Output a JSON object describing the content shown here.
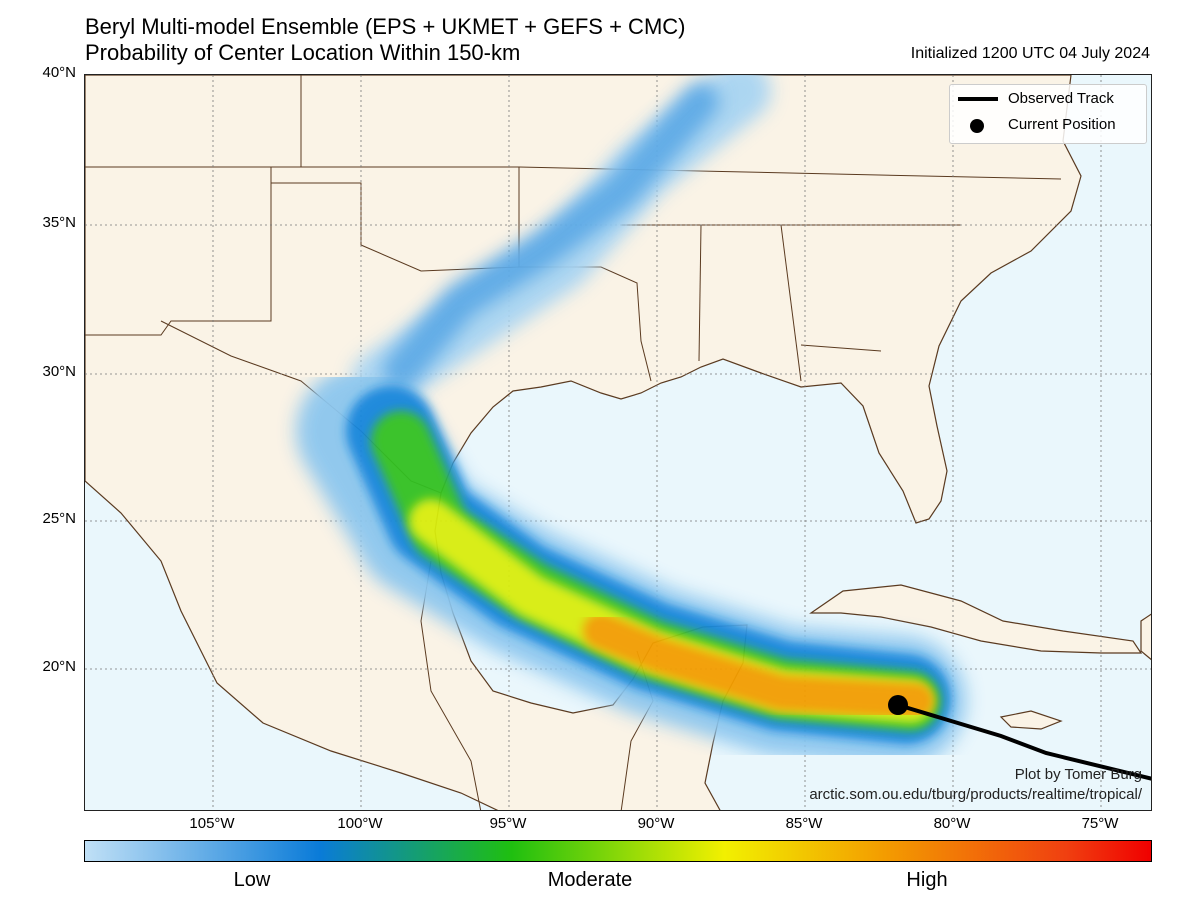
{
  "header": {
    "title_line1": "Beryl Multi-model Ensemble (EPS + UKMET + GEFS + CMC)",
    "title_line2": "Probability of Center Location Within 150-km",
    "initialized": "Initialized 1200 UTC 04 July 2024"
  },
  "axes": {
    "lat_labels": [
      "40°N",
      "35°N",
      "30°N",
      "25°N",
      "20°N"
    ],
    "lon_labels": [
      "105°W",
      "100°W",
      "95°W",
      "90°W",
      "85°W",
      "80°W",
      "75°W"
    ]
  },
  "legend": {
    "items": [
      {
        "label": "Observed Track",
        "icon": "line-icon"
      },
      {
        "label": "Current Position",
        "icon": "dot-icon"
      }
    ]
  },
  "credit": {
    "line1": "Plot by Tomer Burg",
    "line2": "arctic.som.ou.edu/tburg/products/realtime/tropical/"
  },
  "colorbar": {
    "labels": [
      "Low",
      "Moderate",
      "High"
    ],
    "colors": [
      "#c0e0f6",
      "#0a7bd8",
      "#1fbf10",
      "#f2f000",
      "#f39c00",
      "#f04010",
      "#f00000"
    ]
  },
  "colors": {
    "land": "#faf3e6",
    "water": "#eaf7fc",
    "border": "#5a3a20",
    "track": "#000000"
  }
}
